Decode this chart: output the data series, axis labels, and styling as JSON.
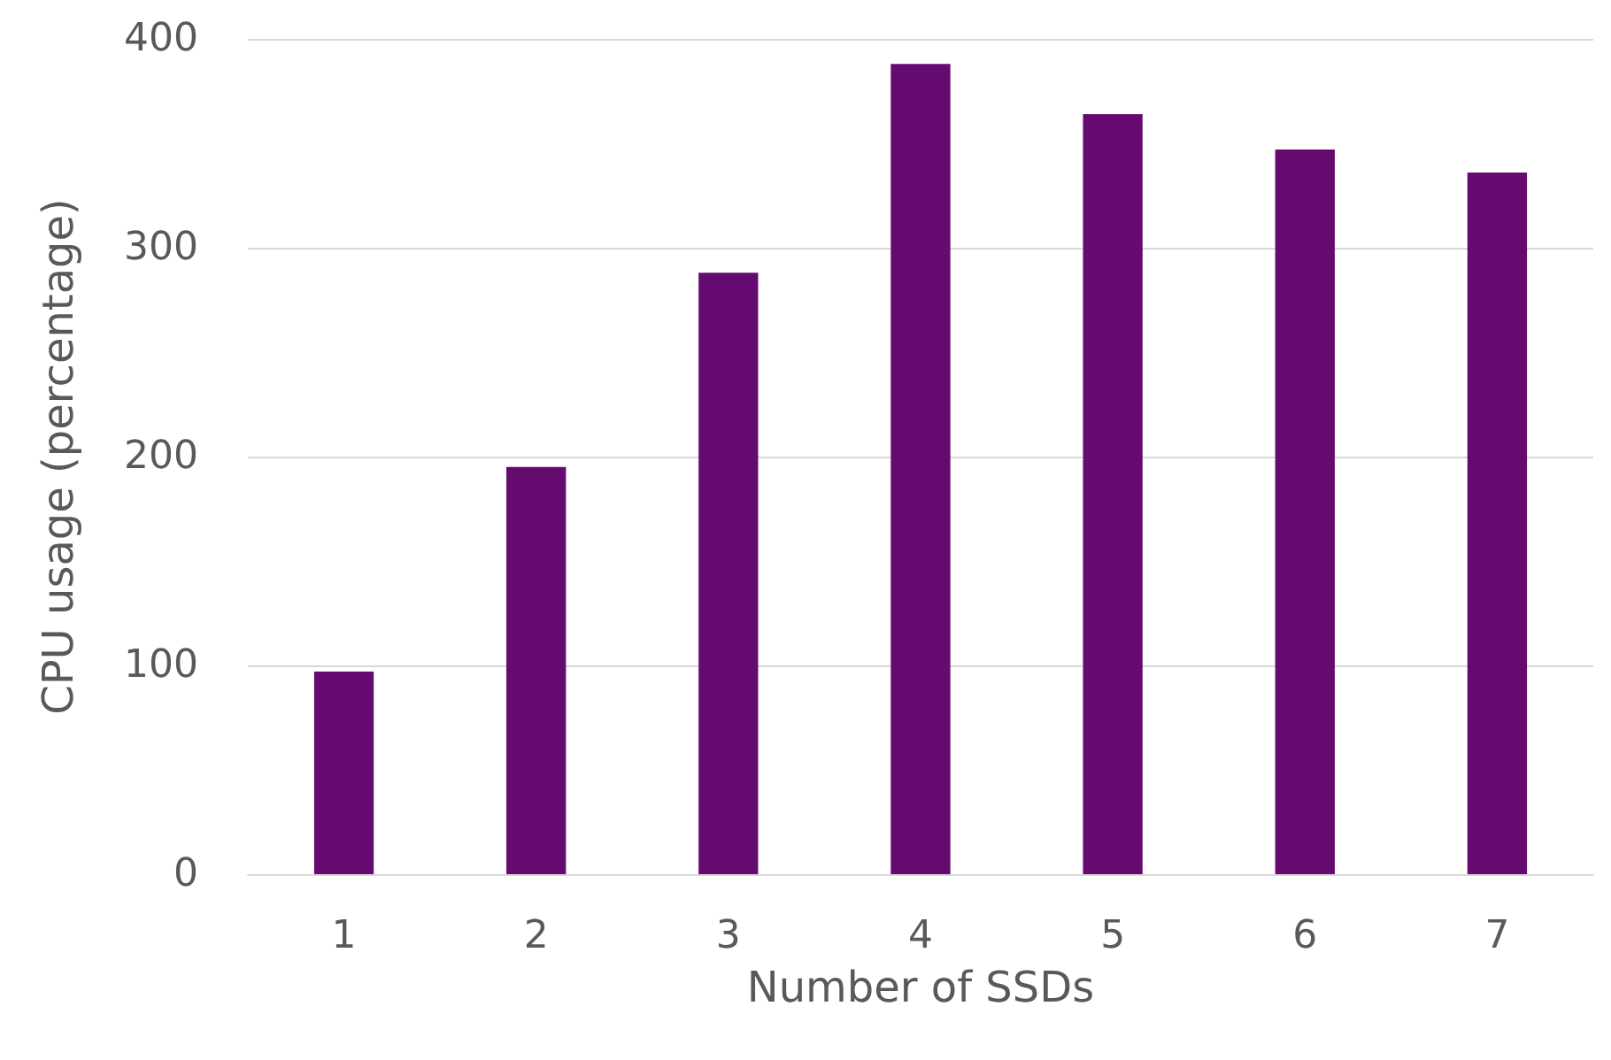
{
  "chart_data": {
    "type": "bar",
    "xlabel": "Number of SSDs",
    "ylabel": "CPU usage (percentage)",
    "categories": [
      "1",
      "2",
      "3",
      "4",
      "5",
      "6",
      "7"
    ],
    "series": [
      {
        "color": "#650a6e",
        "values": [
          97,
          195,
          288,
          388,
          364,
          347,
          336
        ]
      }
    ],
    "ylim": [
      0,
      400
    ],
    "yticks": [
      0,
      100,
      200,
      300,
      400
    ],
    "grid": "y"
  }
}
